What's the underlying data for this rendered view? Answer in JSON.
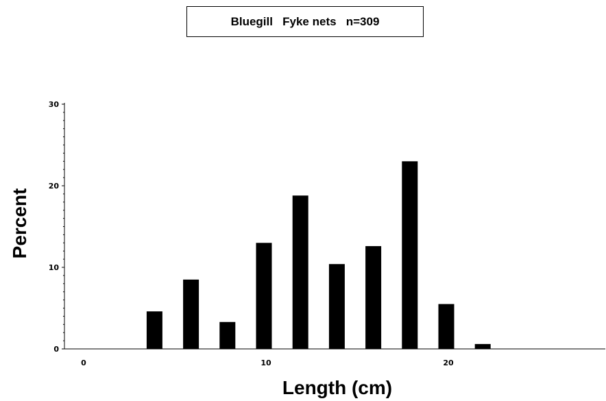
{
  "chart_data": {
    "type": "bar",
    "title": "Bluegill   Fyke nets   n=309",
    "xlabel": "Length  (cm)",
    "ylabel": "Percent",
    "x": [
      4,
      6,
      8,
      10,
      12,
      14,
      16,
      18,
      20,
      22
    ],
    "values": [
      4.6,
      8.5,
      3.3,
      13.0,
      18.8,
      10.4,
      12.6,
      23.0,
      5.5,
      0.6
    ],
    "xlim": [
      -1,
      28.5
    ],
    "ylim": [
      0,
      30
    ],
    "x_ticks": [
      "0",
      "10",
      "20"
    ],
    "y_ticks": [
      "0",
      "10",
      "20",
      "30"
    ],
    "bar_color": "#000000",
    "grid": false,
    "legend": "none"
  }
}
